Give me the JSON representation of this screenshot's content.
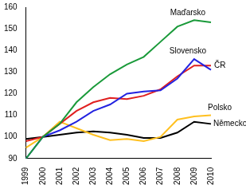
{
  "chart_data": {
    "type": "line",
    "categories": [
      "1999",
      "2000",
      "2001",
      "2002",
      "2003",
      "2004",
      "2005",
      "2006",
      "2007",
      "2008",
      "2009",
      "2010"
    ],
    "series": [
      {
        "name": "Maďarsko",
        "color": "#1a9a3a",
        "values": [
          90,
          100,
          106,
          116,
          123,
          129,
          133.5,
          137,
          144,
          151,
          154,
          153
        ]
      },
      {
        "name": "Slovensko",
        "color": "#2323e0",
        "values": [
          90,
          100,
          103,
          107,
          112,
          115,
          120,
          121,
          121.5,
          127,
          136,
          131
        ]
      },
      {
        "name": "ČR",
        "color": "#e02020",
        "values": [
          98,
          100,
          106,
          112,
          116,
          118,
          117.5,
          119,
          122,
          128,
          133,
          133
        ]
      },
      {
        "name": "Polsko",
        "color": "#ffc020",
        "values": [
          95,
          100,
          107,
          104,
          101,
          98.5,
          99,
          98,
          100,
          108,
          109.5,
          110
        ]
      },
      {
        "name": "Německo",
        "color": "#000000",
        "values": [
          99,
          100,
          101,
          102,
          102.5,
          102,
          101,
          99.5,
          99.5,
          102,
          107,
          106
        ]
      }
    ],
    "ylim": [
      90,
      160
    ],
    "yticks": [
      90,
      100,
      110,
      120,
      130,
      140,
      150,
      160
    ],
    "grid": false
  }
}
